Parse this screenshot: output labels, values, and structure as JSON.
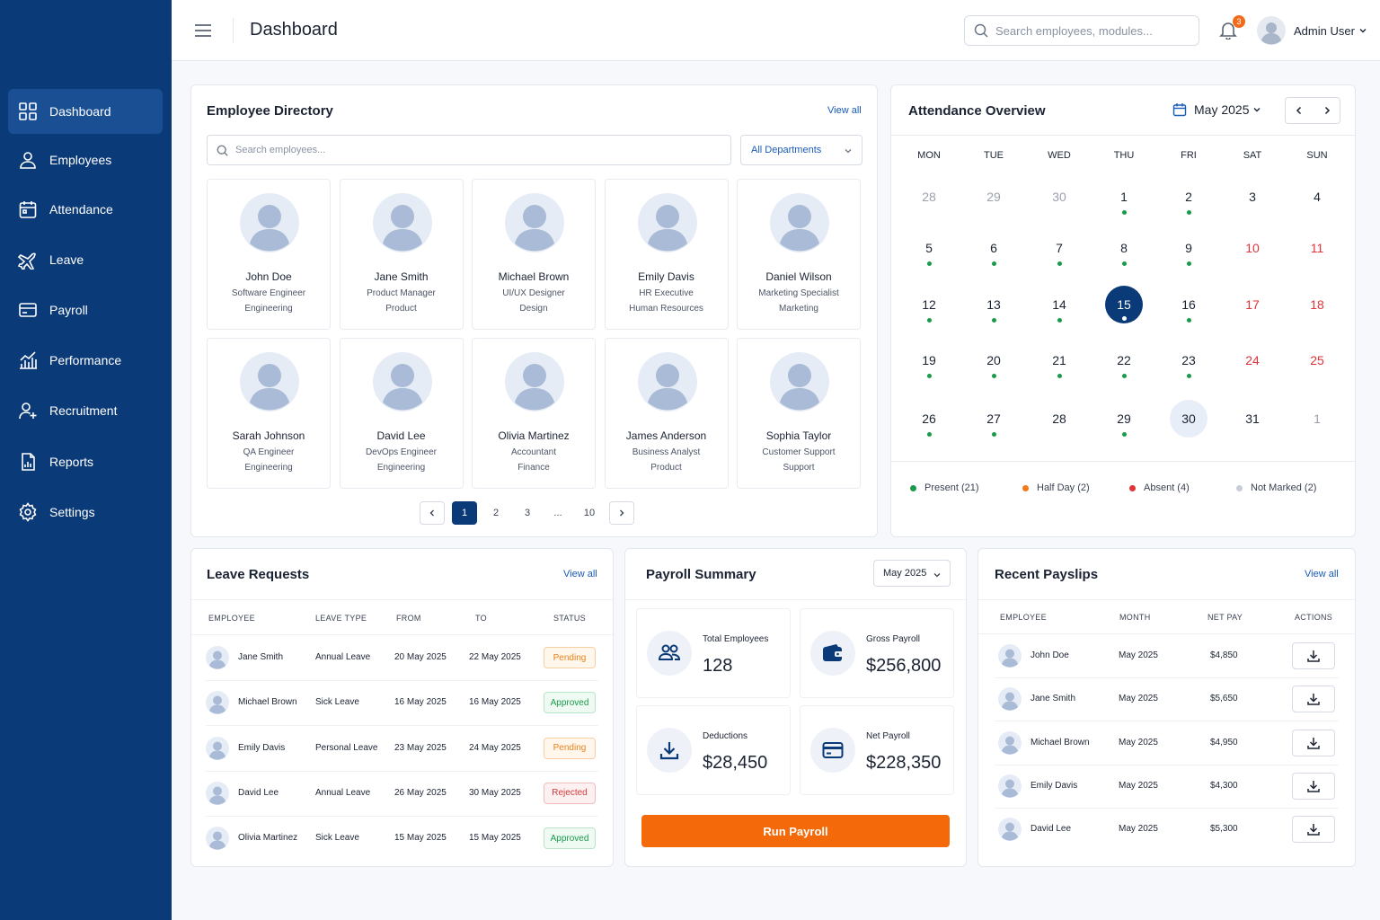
{
  "header": {
    "title": "Dashboard",
    "search_placeholder": "Search employees, modules...",
    "notification_count": "3",
    "user_name": "Admin User"
  },
  "sidebar": {
    "items": [
      {
        "label": "Dashboard",
        "icon": "grid-icon"
      },
      {
        "label": "Employees",
        "icon": "user-icon"
      },
      {
        "label": "Attendance",
        "icon": "calendar-icon"
      },
      {
        "label": "Leave",
        "icon": "plane-icon"
      },
      {
        "label": "Payroll",
        "icon": "card-icon"
      },
      {
        "label": "Performance",
        "icon": "chart-icon"
      },
      {
        "label": "Recruitment",
        "icon": "user-plus-icon"
      },
      {
        "label": "Reports",
        "icon": "report-icon"
      },
      {
        "label": "Settings",
        "icon": "gear-icon"
      }
    ]
  },
  "directory": {
    "title": "Employee Directory",
    "view_all": "View all",
    "search_placeholder": "Search employees...",
    "department_filter": "All Departments",
    "employees": [
      {
        "name": "John Doe",
        "role": "Software Engineer",
        "dept": "Engineering"
      },
      {
        "name": "Jane Smith",
        "role": "Product Manager",
        "dept": "Product"
      },
      {
        "name": "Michael Brown",
        "role": "UI/UX Designer",
        "dept": "Design"
      },
      {
        "name": "Emily Davis",
        "role": "HR Executive",
        "dept": "Human Resources"
      },
      {
        "name": "Daniel Wilson",
        "role": "Marketing Specialist",
        "dept": "Marketing"
      },
      {
        "name": "Sarah Johnson",
        "role": "QA Engineer",
        "dept": "Engineering"
      },
      {
        "name": "David Lee",
        "role": "DevOps Engineer",
        "dept": "Engineering"
      },
      {
        "name": "Olivia Martinez",
        "role": "Accountant",
        "dept": "Finance"
      },
      {
        "name": "James Anderson",
        "role": "Business Analyst",
        "dept": "Product"
      },
      {
        "name": "Sophia Taylor",
        "role": "Customer Support",
        "dept": "Support"
      }
    ],
    "pagination": {
      "pages": [
        "1",
        "2",
        "3",
        "...",
        "10"
      ],
      "current": "1"
    }
  },
  "attendance": {
    "title": "Attendance Overview",
    "month": "May 2025",
    "weekdays": [
      "MON",
      "TUE",
      "WED",
      "THU",
      "FRI",
      "SAT",
      "SUN"
    ],
    "weeks": [
      [
        {
          "d": "28",
          "t": "muted"
        },
        {
          "d": "29",
          "t": "muted"
        },
        {
          "d": "30",
          "t": "muted"
        },
        {
          "d": "1",
          "dot": true
        },
        {
          "d": "2",
          "dot": true
        },
        {
          "d": "3"
        },
        {
          "d": "4"
        }
      ],
      [
        {
          "d": "5",
          "dot": true
        },
        {
          "d": "6",
          "dot": true
        },
        {
          "d": "7",
          "dot": true
        },
        {
          "d": "8",
          "dot": true
        },
        {
          "d": "9",
          "dot": true
        },
        {
          "d": "10",
          "t": "weekend"
        },
        {
          "d": "11",
          "t": "weekend"
        }
      ],
      [
        {
          "d": "12",
          "dot": true
        },
        {
          "d": "13",
          "dot": true
        },
        {
          "d": "14",
          "dot": true
        },
        {
          "d": "15",
          "t": "today",
          "dot": true
        },
        {
          "d": "16",
          "dot": true
        },
        {
          "d": "17",
          "t": "weekend"
        },
        {
          "d": "18",
          "t": "weekend"
        }
      ],
      [
        {
          "d": "19",
          "dot": true
        },
        {
          "d": "20",
          "dot": true
        },
        {
          "d": "21",
          "dot": true
        },
        {
          "d": "22",
          "dot": true
        },
        {
          "d": "23",
          "dot": true
        },
        {
          "d": "24",
          "t": "weekend"
        },
        {
          "d": "25",
          "t": "weekend"
        }
      ],
      [
        {
          "d": "26",
          "dot": true
        },
        {
          "d": "27",
          "dot": true
        },
        {
          "d": "28"
        },
        {
          "d": "29",
          "dot": true
        },
        {
          "d": "30",
          "t": "selected"
        },
        {
          "d": "31"
        },
        {
          "d": "1",
          "t": "muted"
        }
      ]
    ],
    "legend": [
      {
        "label": "Present (21)",
        "color": "#1b9a4b"
      },
      {
        "label": "Half Day (2)",
        "color": "#f27a1a"
      },
      {
        "label": "Absent (4)",
        "color": "#e0343a"
      },
      {
        "label": "Not Marked (2)",
        "color": "#c9ced6"
      }
    ]
  },
  "leave": {
    "title": "Leave Requests",
    "view_all": "View all",
    "columns": [
      "EMPLOYEE",
      "LEAVE TYPE",
      "FROM",
      "TO",
      "STATUS"
    ],
    "rows": [
      {
        "name": "Jane Smith",
        "type": "Annual Leave",
        "from": "20 May 2025",
        "to": "22 May 2025",
        "status": "Pending",
        "kind": "pending"
      },
      {
        "name": "Michael Brown",
        "type": "Sick Leave",
        "from": "16 May 2025",
        "to": "16 May 2025",
        "status": "Approved",
        "kind": "approved"
      },
      {
        "name": "Emily Davis",
        "type": "Personal Leave",
        "from": "23 May 2025",
        "to": "24 May 2025",
        "status": "Pending",
        "kind": "pending"
      },
      {
        "name": "David Lee",
        "type": "Annual Leave",
        "from": "26 May 2025",
        "to": "30 May 2025",
        "status": "Rejected",
        "kind": "rejected"
      },
      {
        "name": "Olivia Martinez",
        "type": "Sick Leave",
        "from": "15 May 2025",
        "to": "15 May 2025",
        "status": "Approved",
        "kind": "approved"
      }
    ]
  },
  "payroll": {
    "title": "Payroll Summary",
    "month": "May 2025",
    "stats": [
      {
        "label": "Total Employees",
        "value": "128",
        "icon": "users-icon"
      },
      {
        "label": "Gross Payroll",
        "value": "$256,800",
        "icon": "wallet-icon"
      },
      {
        "label": "Deductions",
        "value": "$28,450",
        "icon": "download-icon"
      },
      {
        "label": "Net Payroll",
        "value": "$228,350",
        "icon": "card-icon"
      }
    ],
    "run_label": "Run Payroll"
  },
  "payslips": {
    "title": "Recent Payslips",
    "view_all": "View all",
    "columns": [
      "EMPLOYEE",
      "MONTH",
      "NET PAY",
      "ACTIONS"
    ],
    "rows": [
      {
        "name": "John Doe",
        "month": "May 2025",
        "pay": "$4,850"
      },
      {
        "name": "Jane Smith",
        "month": "May 2025",
        "pay": "$5,650"
      },
      {
        "name": "Michael Brown",
        "month": "May 2025",
        "pay": "$4,950"
      },
      {
        "name": "Emily Davis",
        "month": "May 2025",
        "pay": "$4,300"
      },
      {
        "name": "David Lee",
        "month": "May 2025",
        "pay": "$5,300"
      }
    ]
  }
}
